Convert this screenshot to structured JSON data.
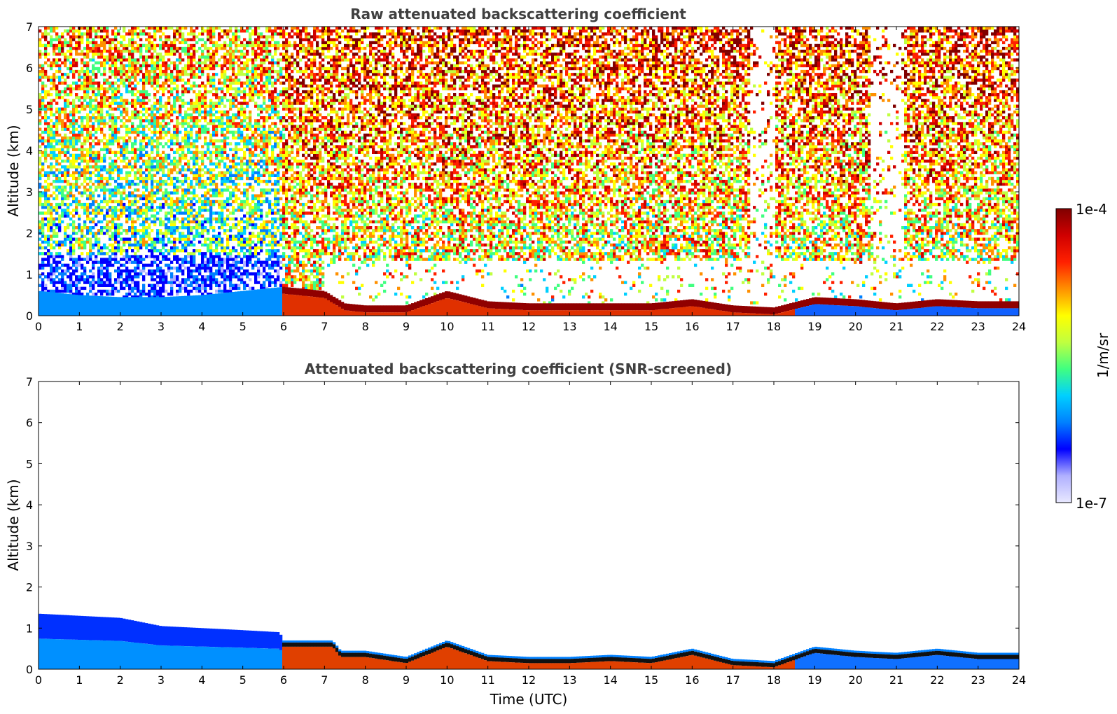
{
  "chart_data": [
    {
      "type": "heatmap",
      "title": "Raw attenuated backscattering coefficient",
      "xlabel": "",
      "ylabel": "Altitude (km)",
      "xlim": [
        0,
        24
      ],
      "ylim": [
        0,
        7
      ],
      "xticks": [
        0,
        1,
        2,
        3,
        4,
        5,
        6,
        7,
        8,
        9,
        10,
        11,
        12,
        13,
        14,
        15,
        16,
        17,
        18,
        19,
        20,
        21,
        22,
        23,
        24
      ],
      "yticks": [
        0,
        1,
        2,
        3,
        4,
        5,
        6,
        7
      ],
      "boundary_layer_top_km": [
        [
          0,
          0.6
        ],
        [
          1,
          0.5
        ],
        [
          2,
          0.45
        ],
        [
          3,
          0.45
        ],
        [
          4,
          0.5
        ],
        [
          5,
          0.6
        ],
        [
          6,
          0.7
        ],
        [
          7,
          0.6
        ],
        [
          7.5,
          0.3
        ],
        [
          8,
          0.25
        ],
        [
          9,
          0.25
        ],
        [
          10,
          0.6
        ],
        [
          11,
          0.35
        ],
        [
          12,
          0.3
        ],
        [
          13,
          0.3
        ],
        [
          14,
          0.3
        ],
        [
          15,
          0.3
        ],
        [
          16,
          0.4
        ],
        [
          17,
          0.25
        ],
        [
          18,
          0.2
        ],
        [
          19,
          0.45
        ],
        [
          20,
          0.4
        ],
        [
          21,
          0.3
        ],
        [
          22,
          0.4
        ],
        [
          23,
          0.35
        ],
        [
          24,
          0.35
        ]
      ],
      "noise_free_gaps_utc": [
        [
          17.4,
          18.0
        ],
        [
          20.4,
          21.2
        ]
      ]
    },
    {
      "type": "heatmap",
      "title": "Attenuated backscattering coefficient (SNR-screened)",
      "xlabel": "Time (UTC)",
      "ylabel": "Altitude (km)",
      "xlim": [
        0,
        24
      ],
      "ylim": [
        0,
        7
      ],
      "xticks": [
        0,
        1,
        2,
        3,
        4,
        5,
        6,
        7,
        8,
        9,
        10,
        11,
        12,
        13,
        14,
        15,
        16,
        17,
        18,
        19,
        20,
        21,
        22,
        23,
        24
      ],
      "yticks": [
        0,
        1,
        2,
        3,
        4,
        5,
        6,
        7
      ],
      "aerosol_layer_top_km": [
        [
          0,
          1.35
        ],
        [
          1,
          1.3
        ],
        [
          2,
          1.25
        ],
        [
          3,
          1.05
        ],
        [
          4,
          1.0
        ],
        [
          5,
          0.95
        ],
        [
          5.9,
          0.9
        ],
        [
          6,
          0.7
        ],
        [
          7.2,
          0.7
        ],
        [
          7.4,
          0.45
        ],
        [
          8,
          0.45
        ],
        [
          9,
          0.3
        ],
        [
          10,
          0.7
        ],
        [
          11,
          0.35
        ],
        [
          12,
          0.3
        ],
        [
          13,
          0.3
        ],
        [
          14,
          0.35
        ],
        [
          15,
          0.3
        ],
        [
          16,
          0.5
        ],
        [
          17,
          0.25
        ],
        [
          18,
          0.2
        ],
        [
          19,
          0.55
        ],
        [
          20,
          0.45
        ],
        [
          21,
          0.4
        ],
        [
          22,
          0.5
        ],
        [
          23,
          0.4
        ],
        [
          24,
          0.4
        ]
      ]
    }
  ],
  "colorbar": {
    "max_label": "1e-4",
    "min_label": "1e-7",
    "unit_label": "1/m/sr",
    "colors": [
      "#e8e8ff",
      "#b0b0ff",
      "#0000ff",
      "#0080ff",
      "#00d0ff",
      "#40ff80",
      "#c0ff40",
      "#ffff00",
      "#ff9000",
      "#ff2000",
      "#d00000",
      "#800000"
    ]
  }
}
